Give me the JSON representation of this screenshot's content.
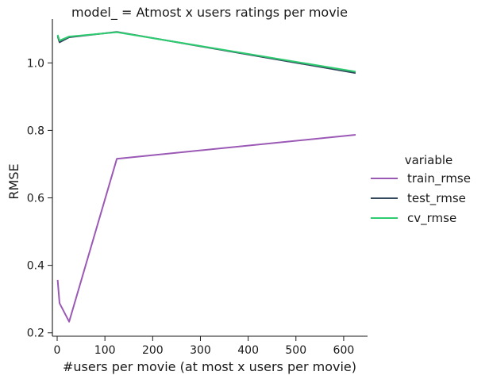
{
  "chart_data": {
    "type": "line",
    "title": "model_ = Atmost x users ratings per movie",
    "xlabel": "#users per movie (at most x users per movie)",
    "ylabel": "RMSE",
    "xlim": [
      -10,
      650
    ],
    "ylim": [
      0.19,
      1.13
    ],
    "xticks": [
      0,
      100,
      200,
      300,
      400,
      500,
      600
    ],
    "yticks": [
      0.2,
      0.4,
      0.6,
      0.8,
      1.0
    ],
    "ytick_labels": [
      "0.2",
      "0.4",
      "0.6",
      "0.8",
      "1.0"
    ],
    "grid": false,
    "legend": {
      "title": "variable",
      "placement": "right"
    },
    "series": [
      {
        "name": "train_rmse",
        "color": "#9b59b6",
        "x": [
          1,
          5,
          25,
          125,
          625
        ],
        "y": [
          0.357,
          0.288,
          0.233,
          0.716,
          0.787
        ]
      },
      {
        "name": "test_rmse",
        "color": "#34495e",
        "x": [
          1,
          5,
          25,
          125,
          625
        ],
        "y": [
          1.08,
          1.061,
          1.076,
          1.092,
          0.97
        ]
      },
      {
        "name": "cv_rmse",
        "color": "#2ecc71",
        "x": [
          1,
          5,
          25,
          125,
          625
        ],
        "y": [
          1.083,
          1.066,
          1.078,
          1.091,
          0.974
        ]
      }
    ]
  }
}
